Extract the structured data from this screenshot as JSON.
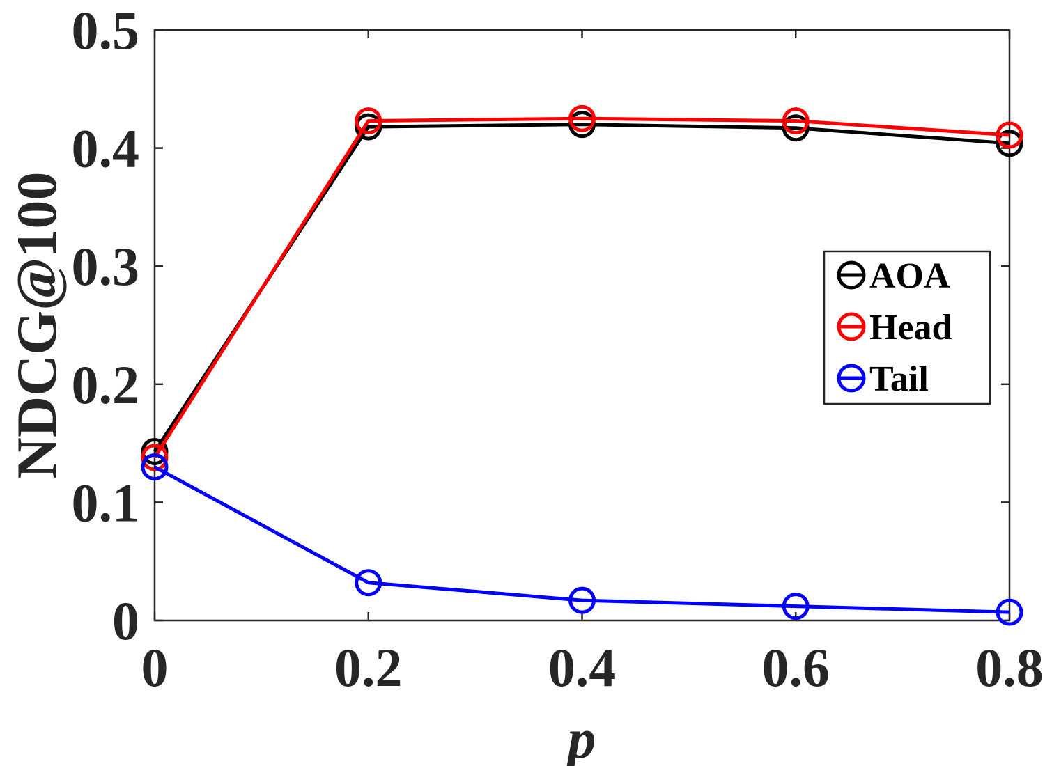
{
  "chart_data": {
    "type": "line",
    "title": "",
    "xlabel": "p",
    "ylabel": "NDCG@100",
    "x": [
      0,
      0.2,
      0.4,
      0.6,
      0.8
    ],
    "x_tick_labels": [
      "0",
      "0.2",
      "0.4",
      "0.6",
      "0.8"
    ],
    "y_tick_labels": [
      "0",
      "0.1",
      "0.2",
      "0.3",
      "0.4",
      "0.5"
    ],
    "y_ticks": [
      0,
      0.1,
      0.2,
      0.3,
      0.4,
      0.5
    ],
    "xlim": [
      0,
      0.8
    ],
    "ylim": [
      0,
      0.5
    ],
    "grid": false,
    "legend_position": "right",
    "marker": "open-circle",
    "series": [
      {
        "name": "AOA",
        "color": "#000000",
        "values": [
          0.143,
          0.418,
          0.42,
          0.417,
          0.404
        ]
      },
      {
        "name": "Head",
        "color": "#ff0000",
        "values": [
          0.138,
          0.423,
          0.425,
          0.423,
          0.411
        ]
      },
      {
        "name": "Tail",
        "color": "#0000ff",
        "values": [
          0.13,
          0.032,
          0.017,
          0.012,
          0.007
        ]
      }
    ]
  }
}
